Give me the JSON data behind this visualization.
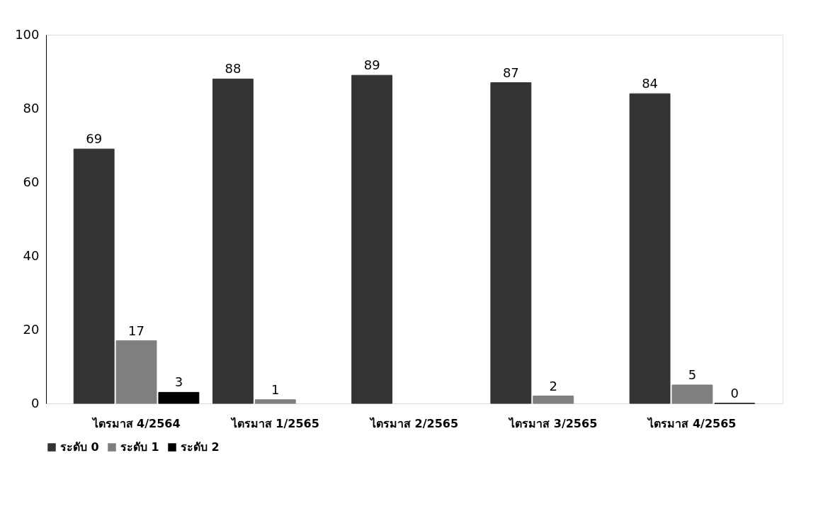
{
  "chart_data": {
    "type": "bar",
    "categories": [
      "ไตรมาส 4/2564",
      "ไตรมาส 1/2565",
      "ไตรมาส 2/2565",
      "ไตรมาส 3/2565",
      "ไตรมาส 4/2565"
    ],
    "series": [
      {
        "name": "ระดับ 0",
        "color": "#333333",
        "values": [
          69,
          88,
          89,
          87,
          84
        ]
      },
      {
        "name": "ระดับ 1",
        "color": "#7f7f7f",
        "values": [
          17,
          1,
          null,
          2,
          5
        ]
      },
      {
        "name": "ระดับ 2",
        "color": "#000000",
        "values": [
          3,
          null,
          null,
          null,
          0
        ]
      }
    ],
    "ylim": [
      0,
      100
    ],
    "yticks": [
      0,
      20,
      40,
      60,
      80,
      100
    ],
    "grid": false,
    "legend": "bottom",
    "data_labels": true
  }
}
